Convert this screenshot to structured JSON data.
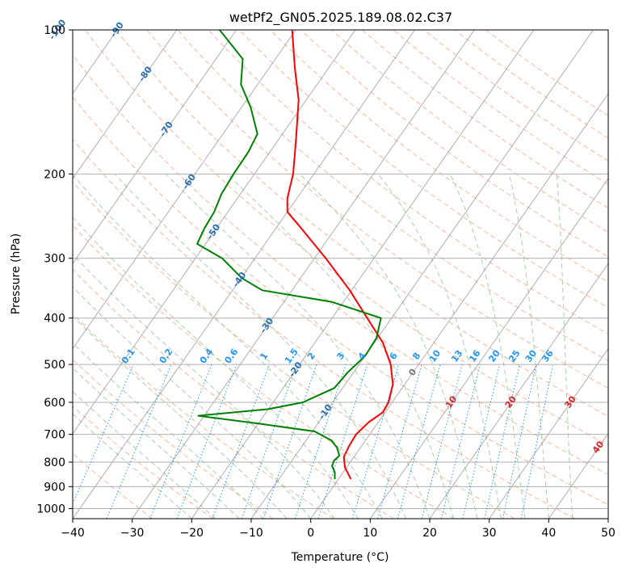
{
  "chart_data": {
    "type": "line",
    "title": "wetPf2_GN05.2025.189.08.02.C37",
    "xlabel": "Temperature (°C)",
    "ylabel": "Pressure (hPa)",
    "xlim": [
      -40,
      50
    ],
    "ylim": [
      1050,
      100
    ],
    "y_scale": "log",
    "x_ticks": [
      "−40",
      "−30",
      "−20",
      "−10",
      "0",
      "10",
      "20",
      "30",
      "40",
      "50"
    ],
    "x_tick_values": [
      -40,
      -30,
      -20,
      -10,
      0,
      10,
      20,
      30,
      40,
      50
    ],
    "y_ticks": [
      "100",
      "200",
      "300",
      "400",
      "500",
      "600",
      "700",
      "800",
      "900",
      "1000"
    ],
    "y_tick_values": [
      100,
      200,
      300,
      400,
      500,
      600,
      700,
      800,
      900,
      1000
    ],
    "grid": true,
    "skew": "skew-T log-p diagram",
    "series": [
      {
        "color": "#ff0000",
        "points": [
          {
            "p": 868,
            "t": 2.1
          },
          {
            "p": 820,
            "t": -0.3
          },
          {
            "p": 780,
            "t": -1.7
          },
          {
            "p": 740,
            "t": -2.1
          },
          {
            "p": 700,
            "t": -2.3
          },
          {
            "p": 660,
            "t": -1.6
          },
          {
            "p": 630,
            "t": -0.4
          },
          {
            "p": 600,
            "t": -0.6
          },
          {
            "p": 550,
            "t": -2.0
          },
          {
            "p": 500,
            "t": -4.7
          },
          {
            "p": 450,
            "t": -8.6
          },
          {
            "p": 400,
            "t": -14.1
          },
          {
            "p": 350,
            "t": -20.3
          },
          {
            "p": 300,
            "t": -28.1
          },
          {
            "p": 260,
            "t": -35.7
          },
          {
            "p": 240,
            "t": -40.0
          },
          {
            "p": 225,
            "t": -41.6
          },
          {
            "p": 200,
            "t": -43.5
          },
          {
            "p": 170,
            "t": -47.0
          },
          {
            "p": 140,
            "t": -51.3
          },
          {
            "p": 120,
            "t": -55.7
          },
          {
            "p": 100,
            "t": -60.6
          }
        ]
      },
      {
        "color": "#008000",
        "points": [
          {
            "p": 868,
            "t": -0.6
          },
          {
            "p": 840,
            "t": -1.4
          },
          {
            "p": 815,
            "t": -2.6
          },
          {
            "p": 795,
            "t": -2.9
          },
          {
            "p": 775,
            "t": -2.6
          },
          {
            "p": 745,
            "t": -4.0
          },
          {
            "p": 720,
            "t": -5.8
          },
          {
            "p": 690,
            "t": -9.6
          },
          {
            "p": 665,
            "t": -19.7
          },
          {
            "p": 640,
            "t": -31.0
          },
          {
            "p": 620,
            "t": -20.0
          },
          {
            "p": 600,
            "t": -15.0
          },
          {
            "p": 560,
            "t": -11.4
          },
          {
            "p": 520,
            "t": -11.0
          },
          {
            "p": 480,
            "t": -10.0
          },
          {
            "p": 440,
            "t": -10.2
          },
          {
            "p": 400,
            "t": -11.8
          },
          {
            "p": 370,
            "t": -22.0
          },
          {
            "p": 350,
            "t": -35.0
          },
          {
            "p": 330,
            "t": -39.9
          },
          {
            "p": 300,
            "t": -45.5
          },
          {
            "p": 280,
            "t": -51.4
          },
          {
            "p": 260,
            "t": -52.0
          },
          {
            "p": 240,
            "t": -52.3
          },
          {
            "p": 220,
            "t": -53.2
          },
          {
            "p": 200,
            "t": -53.5
          },
          {
            "p": 180,
            "t": -53.6
          },
          {
            "p": 165,
            "t": -54.2
          },
          {
            "p": 145,
            "t": -58.5
          },
          {
            "p": 130,
            "t": -62.8
          },
          {
            "p": 115,
            "t": -65.5
          },
          {
            "p": 100,
            "t": -72.8
          }
        ]
      }
    ],
    "isotherm_labels": [
      "-100",
      "-90",
      "-80",
      "-70",
      "-60",
      "-50",
      "-40",
      "-30",
      "-20",
      "-10",
      "0",
      "10",
      "20",
      "30",
      "40"
    ],
    "mixing_ratio_labels": [
      "0.1",
      "0.2",
      "0.4",
      "0.6",
      "1",
      "1.5",
      "2",
      "3",
      "4",
      "6",
      "8",
      "10",
      "13",
      "16",
      "20",
      "25",
      "30",
      "36"
    ],
    "colors": {
      "temperature": "#ff0000",
      "dewpoint": "#008000",
      "dry_adiabat": "#f4a582",
      "moist_adiabat": "#9ccc9c",
      "mixing_ratio": "#2196f3",
      "isotherm": "#8c8c8c",
      "isobar": "#b0b0b0"
    }
  }
}
